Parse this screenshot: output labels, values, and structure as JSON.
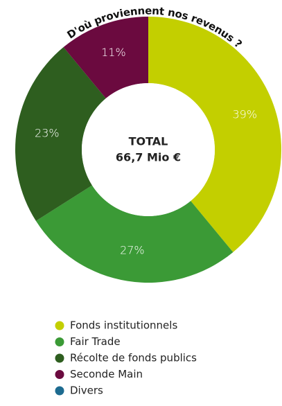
{
  "chart_data": {
    "type": "pie",
    "title": "D'où proviennent nos revenus ?",
    "center_label": [
      "TOTAL",
      "66,7 Mio €"
    ],
    "categories": [
      "Fonds institutionnels",
      "Fair Trade",
      "Récolte de fonds publics",
      "Seconde Main",
      "Divers"
    ],
    "values": [
      39,
      27,
      23,
      11,
      0
    ],
    "value_labels": [
      "39%",
      "27%",
      "23%",
      "11%",
      null
    ],
    "colors": [
      "#c3cf00",
      "#3b9a36",
      "#2e5e1f",
      "#6b0a3f",
      "#1d6b90"
    ],
    "donut": true
  }
}
